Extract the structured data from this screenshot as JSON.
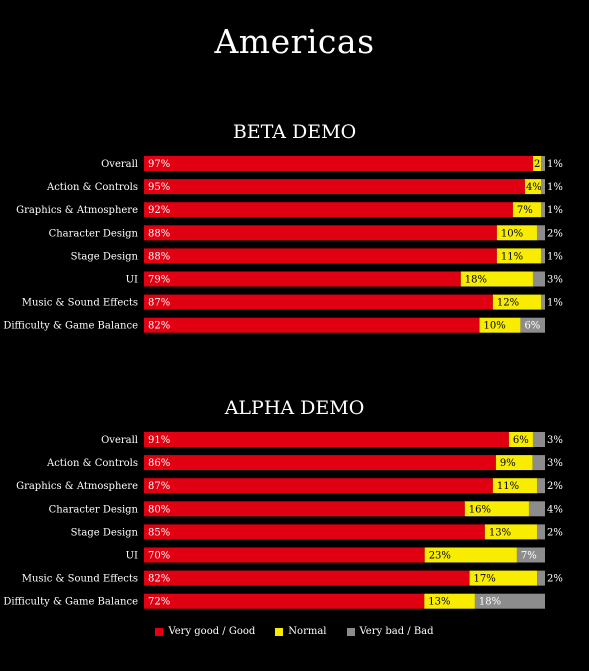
{
  "title": "Americas",
  "colors": {
    "good": "#e00012",
    "normal": "#f8ec00",
    "bad": "#8c8c8c"
  },
  "legend": [
    {
      "label": "Very good / Good",
      "color": "#e00012"
    },
    {
      "label": "Normal",
      "color": "#f8ec00"
    },
    {
      "label": "Very bad / Bad",
      "color": "#8c8c8c"
    }
  ],
  "chart_data": [
    {
      "type": "bar",
      "orientation": "horizontal",
      "stacked": true,
      "title": "BETA DEMO",
      "categories": [
        "Overall",
        "Action & Controls",
        "Graphics & Atmosphere",
        "Character Design",
        "Stage Design",
        "UI",
        "Music & Sound Effects",
        "Difficulty & Game Balance"
      ],
      "series": [
        {
          "name": "Very good / Good",
          "values": [
            97,
            95,
            92,
            88,
            88,
            79,
            87,
            82
          ]
        },
        {
          "name": "Normal",
          "values": [
            2,
            4,
            7,
            10,
            11,
            18,
            12,
            10
          ]
        },
        {
          "name": "Very bad / Bad",
          "values": [
            1,
            1,
            1,
            2,
            1,
            3,
            1,
            6
          ]
        }
      ],
      "xlim": [
        0,
        100
      ]
    },
    {
      "type": "bar",
      "orientation": "horizontal",
      "stacked": true,
      "title": "ALPHA DEMO",
      "categories": [
        "Overall",
        "Action & Controls",
        "Graphics & Atmosphere",
        "Character Design",
        "Stage Design",
        "UI",
        "Music & Sound Effects",
        "Difficulty & Game Balance"
      ],
      "series": [
        {
          "name": "Very good / Good",
          "values": [
            91,
            86,
            87,
            80,
            85,
            70,
            82,
            72
          ]
        },
        {
          "name": "Normal",
          "values": [
            6,
            9,
            11,
            16,
            13,
            23,
            17,
            13
          ]
        },
        {
          "name": "Very bad / Bad",
          "values": [
            3,
            3,
            2,
            4,
            2,
            7,
            2,
            18
          ]
        }
      ],
      "xlim": [
        0,
        100
      ]
    }
  ]
}
